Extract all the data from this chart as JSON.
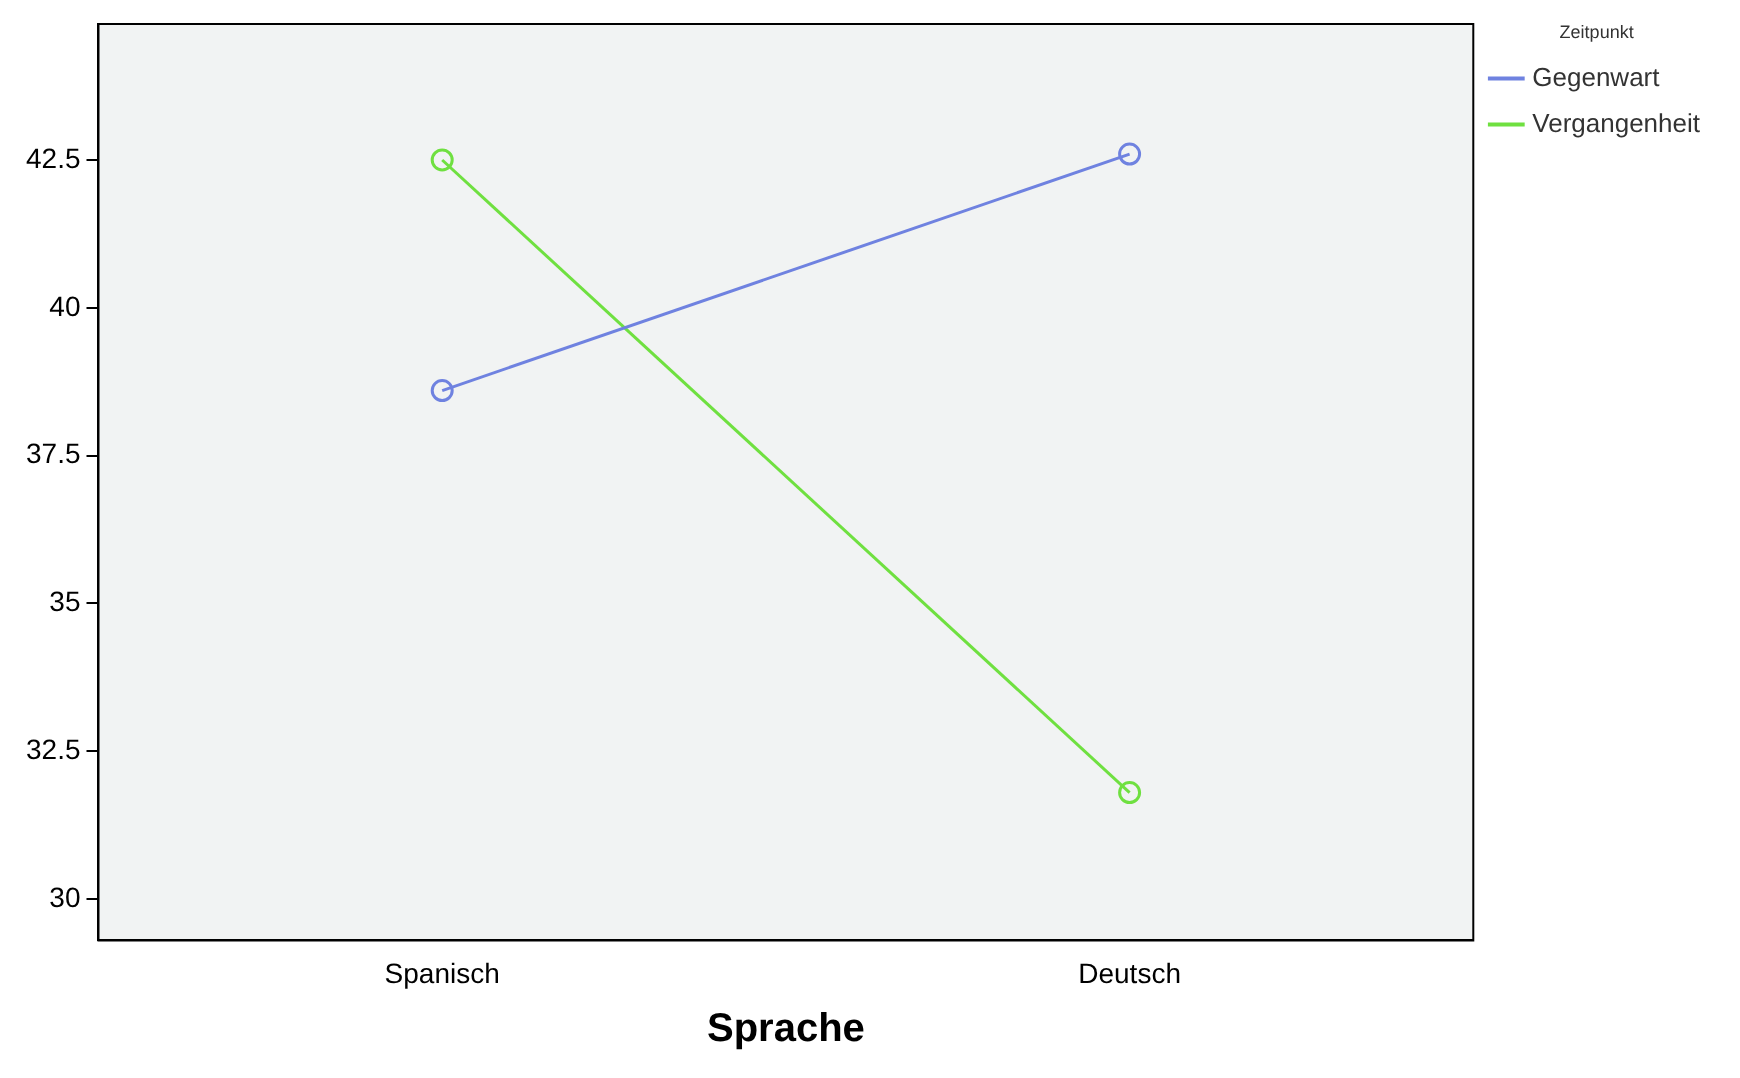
{
  "chart_data": {
    "type": "line",
    "xlabel": "Sprache",
    "legend_title": "Zeitpunkt",
    "categories": [
      "Spanisch",
      "Deutsch"
    ],
    "series": [
      {
        "name": "Gegenwart",
        "color": "#6f82e0",
        "values": [
          38.6,
          42.6
        ]
      },
      {
        "name": "Vergangenheit",
        "color": "#6fe040",
        "values": [
          42.5,
          31.8
        ]
      }
    ],
    "ylim": [
      29.3,
      44.8
    ],
    "yticks": [
      30,
      32.5,
      35,
      37.5,
      40,
      42.5
    ],
    "grid": false,
    "legend": "top right",
    "marker": "circle",
    "line_style": "solid"
  }
}
